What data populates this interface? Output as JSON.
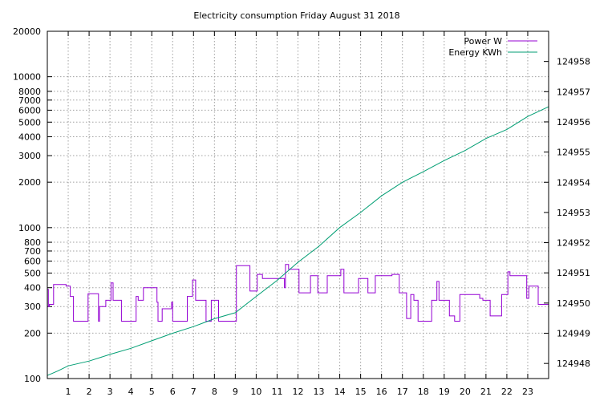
{
  "chart_data": {
    "type": "line",
    "title": "Electricity consumption Friday August 31 2018",
    "xlabel": "",
    "ylabel": "",
    "y2label": "",
    "xlim": [
      0,
      24
    ],
    "ylim": [
      100,
      20000
    ],
    "y_scale": "log",
    "y2lim": [
      124947.5,
      124959
    ],
    "grid": true,
    "legend_position": "top-right",
    "x_ticks": [
      1,
      2,
      3,
      4,
      5,
      6,
      7,
      8,
      9,
      10,
      11,
      12,
      13,
      14,
      15,
      16,
      17,
      18,
      19,
      20,
      21,
      22,
      23
    ],
    "y_ticks": [
      100,
      200,
      300,
      400,
      500,
      600,
      700,
      800,
      1000,
      2000,
      3000,
      4000,
      5000,
      6000,
      7000,
      8000,
      10000,
      20000
    ],
    "y2_ticks": [
      124948,
      124949,
      124950,
      124951,
      124952,
      124953,
      124954,
      124955,
      124956,
      124957,
      124958
    ],
    "series": [
      {
        "name": "Power W",
        "color": "#9400d3",
        "axis": "y",
        "step": true,
        "x": [
          0,
          0.05,
          0.1,
          0.3,
          0.9,
          1.1,
          1.25,
          1.95,
          2.45,
          2.5,
          2.8,
          3.05,
          3.15,
          3.2,
          3.55,
          4.25,
          4.35,
          4.6,
          5.25,
          5.3,
          5.5,
          5.95,
          6.0,
          6.7,
          6.95,
          7.1,
          7.6,
          7.85,
          8.2,
          8.4,
          9.05,
          9.7,
          10.05,
          10.3,
          11.35,
          11.4,
          11.55,
          12.05,
          12.6,
          12.95,
          13.4,
          14.05,
          14.2,
          14.9,
          15.35,
          15.7,
          16.0,
          16.5,
          16.85,
          17.2,
          17.4,
          17.55,
          17.75,
          18.4,
          18.65,
          18.75,
          19.25,
          19.5,
          19.75,
          20.7,
          20.85,
          21.2,
          21.75,
          22.05,
          22.15,
          22.2,
          22.95,
          23.05,
          23.5,
          23.9
        ],
        "values": [
          390,
          300,
          310,
          420,
          410,
          350,
          240,
          365,
          240,
          300,
          330,
          430,
          330,
          330,
          240,
          350,
          330,
          400,
          320,
          240,
          290,
          320,
          240,
          350,
          450,
          330,
          240,
          330,
          240,
          240,
          560,
          380,
          490,
          460,
          400,
          570,
          530,
          370,
          480,
          370,
          480,
          530,
          370,
          460,
          370,
          480,
          480,
          490,
          370,
          250,
          360,
          330,
          240,
          330,
          440,
          330,
          260,
          240,
          360,
          340,
          330,
          260,
          360,
          510,
          480,
          480,
          340,
          410,
          310,
          310
        ]
      },
      {
        "name": "Energy KWh",
        "color": "#009e73",
        "axis": "y2",
        "x": [
          0,
          0.5,
          1,
          2,
          3,
          4,
          5,
          6,
          7,
          8,
          9,
          10,
          11,
          12,
          13,
          14,
          15,
          16,
          17,
          18,
          19,
          20,
          21,
          22,
          23,
          24
        ],
        "values": [
          124947.6,
          124947.75,
          124947.92,
          124948.08,
          124948.3,
          124948.5,
          124948.75,
          124949.0,
          124949.22,
          124949.48,
          124949.68,
          124950.22,
          124950.75,
          124951.35,
          124951.88,
          124952.5,
          124953.0,
          124953.55,
          124954.0,
          124954.35,
          124954.72,
          124955.05,
          124955.45,
          124955.75,
          124956.18,
          124956.5
        ]
      }
    ]
  }
}
